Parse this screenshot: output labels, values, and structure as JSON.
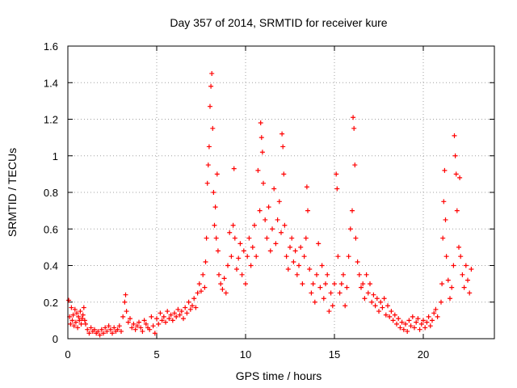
{
  "chart_data": {
    "type": "scatter",
    "title": "Day 357 of 2014, SRMTID for receiver kure",
    "xlabel": "GPS time / hours",
    "ylabel": "SRMTID / TECUs",
    "xlim": [
      0,
      24
    ],
    "ylim": [
      0,
      1.6
    ],
    "x_ticks": [
      0,
      5,
      10,
      15,
      20
    ],
    "x_tick_labels": [
      "0",
      "5",
      "10",
      "15",
      "20"
    ],
    "y_ticks": [
      0,
      0.2,
      0.4,
      0.6,
      0.8,
      1.0,
      1.2,
      1.4,
      1.6
    ],
    "y_tick_labels": [
      "0",
      "0.2",
      "0.4",
      "0.6",
      "0.8",
      "1",
      "1.2",
      "1.4",
      "1.6"
    ],
    "grid": true,
    "marker": "+",
    "color": "#ff0000",
    "series": [
      {
        "name": "SRMTID",
        "points": [
          [
            0.05,
            0.21
          ],
          [
            0.1,
            0.12
          ],
          [
            0.15,
            0.08
          ],
          [
            0.2,
            0.17
          ],
          [
            0.25,
            0.1
          ],
          [
            0.3,
            0.13
          ],
          [
            0.35,
            0.07
          ],
          [
            0.4,
            0.16
          ],
          [
            0.45,
            0.09
          ],
          [
            0.5,
            0.14
          ],
          [
            0.55,
            0.06
          ],
          [
            0.6,
            0.12
          ],
          [
            0.65,
            0.1
          ],
          [
            0.7,
            0.15
          ],
          [
            0.75,
            0.08
          ],
          [
            0.8,
            0.11
          ],
          [
            0.85,
            0.13
          ],
          [
            0.9,
            0.17
          ],
          [
            0.95,
            0.1
          ],
          [
            1.0,
            0.08
          ],
          [
            1.1,
            0.05
          ],
          [
            1.2,
            0.03
          ],
          [
            1.3,
            0.06
          ],
          [
            1.4,
            0.04
          ],
          [
            1.5,
            0.05
          ],
          [
            1.6,
            0.03
          ],
          [
            1.7,
            0.04
          ],
          [
            1.8,
            0.02
          ],
          [
            1.9,
            0.05
          ],
          [
            2.0,
            0.03
          ],
          [
            2.1,
            0.06
          ],
          [
            2.2,
            0.04
          ],
          [
            2.3,
            0.07
          ],
          [
            2.4,
            0.05
          ],
          [
            2.5,
            0.03
          ],
          [
            2.6,
            0.06
          ],
          [
            2.7,
            0.04
          ],
          [
            2.8,
            0.05
          ],
          [
            2.9,
            0.07
          ],
          [
            3.0,
            0.04
          ],
          [
            3.1,
            0.12
          ],
          [
            3.2,
            0.2
          ],
          [
            3.25,
            0.24
          ],
          [
            3.3,
            0.15
          ],
          [
            3.4,
            0.09
          ],
          [
            3.5,
            0.11
          ],
          [
            3.6,
            0.06
          ],
          [
            3.7,
            0.08
          ],
          [
            3.8,
            0.05
          ],
          [
            3.9,
            0.07
          ],
          [
            4.0,
            0.09
          ],
          [
            4.1,
            0.06
          ],
          [
            4.2,
            0.04
          ],
          [
            4.3,
            0.1
          ],
          [
            4.4,
            0.08
          ],
          [
            4.5,
            0.06
          ],
          [
            4.6,
            0.05
          ],
          [
            4.7,
            0.12
          ],
          [
            4.8,
            0.07
          ],
          [
            4.9,
            0.03
          ],
          [
            5.0,
            0.11
          ],
          [
            5.1,
            0.08
          ],
          [
            5.2,
            0.14
          ],
          [
            5.3,
            0.1
          ],
          [
            5.4,
            0.12
          ],
          [
            5.5,
            0.09
          ],
          [
            5.6,
            0.15
          ],
          [
            5.7,
            0.11
          ],
          [
            5.8,
            0.13
          ],
          [
            5.9,
            0.1
          ],
          [
            6.0,
            0.14
          ],
          [
            6.1,
            0.12
          ],
          [
            6.2,
            0.16
          ],
          [
            6.3,
            0.13
          ],
          [
            6.4,
            0.15
          ],
          [
            6.5,
            0.11
          ],
          [
            6.6,
            0.17
          ],
          [
            6.7,
            0.14
          ],
          [
            6.8,
            0.2
          ],
          [
            6.9,
            0.16
          ],
          [
            7.0,
            0.18
          ],
          [
            7.1,
            0.22
          ],
          [
            7.2,
            0.17
          ],
          [
            7.3,
            0.25
          ],
          [
            7.4,
            0.3
          ],
          [
            7.5,
            0.26
          ],
          [
            7.6,
            0.35
          ],
          [
            7.7,
            0.28
          ],
          [
            7.75,
            0.42
          ],
          [
            7.8,
            0.55
          ],
          [
            7.85,
            0.85
          ],
          [
            7.9,
            0.95
          ],
          [
            7.95,
            1.05
          ],
          [
            8.0,
            1.27
          ],
          [
            8.05,
            1.38
          ],
          [
            8.1,
            1.45
          ],
          [
            8.15,
            1.15
          ],
          [
            8.2,
            0.8
          ],
          [
            8.25,
            0.62
          ],
          [
            8.3,
            0.72
          ],
          [
            8.35,
            0.55
          ],
          [
            8.4,
            0.9
          ],
          [
            8.45,
            0.48
          ],
          [
            8.5,
            0.35
          ],
          [
            8.6,
            0.3
          ],
          [
            8.7,
            0.27
          ],
          [
            8.8,
            0.33
          ],
          [
            8.9,
            0.25
          ],
          [
            9.0,
            0.4
          ],
          [
            9.1,
            0.58
          ],
          [
            9.2,
            0.45
          ],
          [
            9.3,
            0.62
          ],
          [
            9.35,
            0.93
          ],
          [
            9.4,
            0.55
          ],
          [
            9.5,
            0.38
          ],
          [
            9.6,
            0.44
          ],
          [
            9.7,
            0.52
          ],
          [
            9.8,
            0.35
          ],
          [
            9.9,
            0.48
          ],
          [
            10.0,
            0.3
          ],
          [
            10.1,
            0.45
          ],
          [
            10.2,
            0.55
          ],
          [
            10.3,
            0.4
          ],
          [
            10.4,
            0.5
          ],
          [
            10.5,
            0.62
          ],
          [
            10.6,
            0.45
          ],
          [
            10.7,
            0.92
          ],
          [
            10.8,
            0.7
          ],
          [
            10.85,
            1.18
          ],
          [
            10.9,
            1.1
          ],
          [
            10.95,
            1.02
          ],
          [
            11.0,
            0.85
          ],
          [
            11.1,
            0.65
          ],
          [
            11.2,
            0.55
          ],
          [
            11.3,
            0.72
          ],
          [
            11.4,
            0.48
          ],
          [
            11.5,
            0.6
          ],
          [
            11.6,
            0.82
          ],
          [
            11.7,
            0.52
          ],
          [
            11.8,
            0.65
          ],
          [
            11.9,
            0.75
          ],
          [
            12.0,
            0.58
          ],
          [
            12.05,
            1.12
          ],
          [
            12.1,
            1.05
          ],
          [
            12.15,
            0.9
          ],
          [
            12.2,
            0.62
          ],
          [
            12.3,
            0.45
          ],
          [
            12.4,
            0.38
          ],
          [
            12.5,
            0.5
          ],
          [
            12.6,
            0.55
          ],
          [
            12.7,
            0.42
          ],
          [
            12.8,
            0.48
          ],
          [
            12.9,
            0.35
          ],
          [
            13.0,
            0.4
          ],
          [
            13.1,
            0.5
          ],
          [
            13.2,
            0.3
          ],
          [
            13.3,
            0.45
          ],
          [
            13.4,
            0.55
          ],
          [
            13.45,
            0.83
          ],
          [
            13.5,
            0.7
          ],
          [
            13.6,
            0.38
          ],
          [
            13.7,
            0.25
          ],
          [
            13.8,
            0.3
          ],
          [
            13.9,
            0.2
          ],
          [
            14.0,
            0.35
          ],
          [
            14.1,
            0.52
          ],
          [
            14.2,
            0.28
          ],
          [
            14.3,
            0.4
          ],
          [
            14.4,
            0.22
          ],
          [
            14.5,
            0.3
          ],
          [
            14.6,
            0.35
          ],
          [
            14.7,
            0.15
          ],
          [
            14.8,
            0.25
          ],
          [
            14.9,
            0.18
          ],
          [
            15.0,
            0.3
          ],
          [
            15.1,
            0.9
          ],
          [
            15.15,
            0.82
          ],
          [
            15.2,
            0.45
          ],
          [
            15.3,
            0.25
          ],
          [
            15.4,
            0.3
          ],
          [
            15.5,
            0.35
          ],
          [
            15.6,
            0.18
          ],
          [
            15.7,
            0.28
          ],
          [
            15.8,
            0.45
          ],
          [
            15.9,
            0.6
          ],
          [
            16.0,
            0.7
          ],
          [
            16.05,
            1.21
          ],
          [
            16.1,
            1.15
          ],
          [
            16.15,
            0.95
          ],
          [
            16.2,
            0.55
          ],
          [
            16.3,
            0.42
          ],
          [
            16.4,
            0.35
          ],
          [
            16.5,
            0.28
          ],
          [
            16.6,
            0.3
          ],
          [
            16.7,
            0.22
          ],
          [
            16.8,
            0.35
          ],
          [
            16.9,
            0.25
          ],
          [
            17.0,
            0.3
          ],
          [
            17.1,
            0.2
          ],
          [
            17.2,
            0.24
          ],
          [
            17.3,
            0.18
          ],
          [
            17.4,
            0.22
          ],
          [
            17.5,
            0.15
          ],
          [
            17.6,
            0.2
          ],
          [
            17.7,
            0.17
          ],
          [
            17.8,
            0.22
          ],
          [
            17.9,
            0.13
          ],
          [
            18.0,
            0.18
          ],
          [
            18.1,
            0.12
          ],
          [
            18.2,
            0.15
          ],
          [
            18.3,
            0.1
          ],
          [
            18.4,
            0.13
          ],
          [
            18.5,
            0.08
          ],
          [
            18.6,
            0.11
          ],
          [
            18.7,
            0.06
          ],
          [
            18.8,
            0.09
          ],
          [
            18.9,
            0.05
          ],
          [
            19.0,
            0.08
          ],
          [
            19.1,
            0.04
          ],
          [
            19.2,
            0.1
          ],
          [
            19.3,
            0.07
          ],
          [
            19.4,
            0.12
          ],
          [
            19.5,
            0.06
          ],
          [
            19.6,
            0.09
          ],
          [
            19.7,
            0.11
          ],
          [
            19.8,
            0.05
          ],
          [
            19.9,
            0.08
          ],
          [
            20.0,
            0.1
          ],
          [
            20.1,
            0.06
          ],
          [
            20.2,
            0.09
          ],
          [
            20.3,
            0.12
          ],
          [
            20.4,
            0.07
          ],
          [
            20.5,
            0.1
          ],
          [
            20.6,
            0.14
          ],
          [
            20.7,
            0.16
          ],
          [
            20.8,
            0.12
          ],
          [
            21.0,
            0.2
          ],
          [
            21.05,
            0.3
          ],
          [
            21.1,
            0.55
          ],
          [
            21.15,
            0.75
          ],
          [
            21.2,
            0.92
          ],
          [
            21.25,
            0.65
          ],
          [
            21.3,
            0.45
          ],
          [
            21.4,
            0.32
          ],
          [
            21.5,
            0.22
          ],
          [
            21.6,
            0.28
          ],
          [
            21.7,
            0.4
          ],
          [
            21.75,
            1.11
          ],
          [
            21.8,
            1.0
          ],
          [
            21.85,
            0.9
          ],
          [
            21.9,
            0.7
          ],
          [
            22.0,
            0.5
          ],
          [
            22.05,
            0.88
          ],
          [
            22.1,
            0.45
          ],
          [
            22.2,
            0.35
          ],
          [
            22.3,
            0.28
          ],
          [
            22.4,
            0.4
          ],
          [
            22.5,
            0.32
          ],
          [
            22.6,
            0.25
          ],
          [
            22.7,
            0.38
          ]
        ]
      }
    ]
  }
}
